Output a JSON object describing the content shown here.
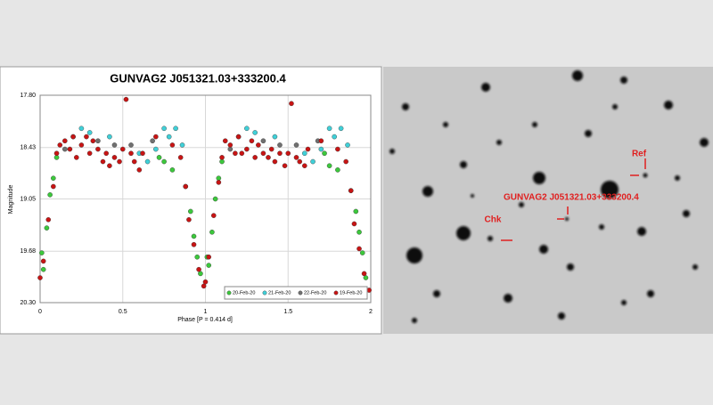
{
  "chart_data": {
    "type": "scatter",
    "title": "GUNVAG2 J051321.03+333200.4",
    "x_label": "Phase [P = 0.414 d]",
    "y_label": "Magnitude",
    "xlim": [
      0,
      2
    ],
    "xticks": [
      0,
      0.5,
      1,
      1.5,
      2
    ],
    "ylim": [
      17.8,
      20.3
    ],
    "y_inverted": true,
    "yticks": [
      {
        "value": 17.8,
        "label": "17.80"
      },
      18.43,
      19.05,
      19.68,
      {
        "value": 20.3,
        "label": "20.30"
      }
    ],
    "grid": true,
    "legend": "lower right",
    "series": [
      {
        "name": "20-Feb-20",
        "color": "#3cc83c",
        "x": [
          0.01,
          0.02,
          0.04,
          0.06,
          0.08,
          0.1,
          0.72,
          0.75,
          0.8,
          0.88,
          0.91,
          0.93,
          0.95,
          0.97,
          1.01,
          1.02,
          1.04,
          1.06,
          1.08,
          1.1,
          1.72,
          1.75,
          1.8,
          1.88,
          1.91,
          1.93,
          1.95,
          1.97
        ],
        "values": [
          19.7,
          19.9,
          19.4,
          19.0,
          18.8,
          18.55,
          18.55,
          18.6,
          18.7,
          18.9,
          19.2,
          19.5,
          19.75,
          19.95,
          19.75,
          19.85,
          19.45,
          19.05,
          18.8,
          18.6,
          18.5,
          18.65,
          18.7,
          18.95,
          19.2,
          19.45,
          19.7,
          20.0
        ]
      },
      {
        "name": "21-Feb-20",
        "color": "#40d0d8",
        "x": [
          0.2,
          0.25,
          0.3,
          0.42,
          0.6,
          0.65,
          0.7,
          0.75,
          0.78,
          0.82,
          0.86,
          1.2,
          1.25,
          1.3,
          1.42,
          1.6,
          1.65,
          1.7,
          1.75,
          1.78,
          1.82,
          1.86
        ],
        "values": [
          18.3,
          18.2,
          18.25,
          18.3,
          18.5,
          18.6,
          18.45,
          18.2,
          18.3,
          18.2,
          18.4,
          18.3,
          18.2,
          18.25,
          18.3,
          18.5,
          18.6,
          18.45,
          18.2,
          18.3,
          18.2,
          18.4
        ]
      },
      {
        "name": "22-Feb-20",
        "color": "#707070",
        "x": [
          0.15,
          0.35,
          0.45,
          0.55,
          0.68,
          1.15,
          1.35,
          1.45,
          1.55,
          1.68
        ],
        "values": [
          18.45,
          18.35,
          18.4,
          18.4,
          18.35,
          18.45,
          18.35,
          18.4,
          18.4,
          18.35
        ]
      },
      {
        "name": "19-Feb-20",
        "color": "#c81414",
        "x": [
          0.0,
          0.02,
          0.05,
          0.08,
          0.1,
          0.12,
          0.15,
          0.18,
          0.2,
          0.22,
          0.25,
          0.28,
          0.3,
          0.32,
          0.35,
          0.38,
          0.4,
          0.42,
          0.45,
          0.48,
          0.5,
          0.52,
          0.55,
          0.57,
          0.6,
          0.62,
          0.7,
          0.8,
          0.85,
          0.88,
          0.9,
          0.93,
          0.96,
          0.99,
          1.0,
          1.02,
          1.05,
          1.08,
          1.1,
          1.12,
          1.15,
          1.18,
          1.2,
          1.22,
          1.25,
          1.28,
          1.3,
          1.32,
          1.35,
          1.38,
          1.4,
          1.42,
          1.45,
          1.48,
          1.5,
          1.52,
          1.55,
          1.57,
          1.6,
          1.62,
          1.7,
          1.8,
          1.85,
          1.88,
          1.9,
          1.93,
          1.96,
          1.99
        ],
        "values": [
          20.0,
          19.8,
          19.3,
          18.9,
          18.5,
          18.4,
          18.35,
          18.45,
          18.3,
          18.55,
          18.4,
          18.3,
          18.5,
          18.35,
          18.45,
          18.6,
          18.5,
          18.65,
          18.55,
          18.6,
          18.45,
          17.85,
          18.5,
          18.6,
          18.7,
          18.5,
          18.3,
          18.4,
          18.55,
          18.9,
          19.3,
          19.6,
          19.9,
          20.1,
          20.05,
          19.75,
          19.25,
          18.85,
          18.55,
          18.35,
          18.4,
          18.5,
          18.3,
          18.5,
          18.45,
          18.35,
          18.55,
          18.4,
          18.5,
          18.55,
          18.45,
          18.6,
          18.5,
          18.65,
          18.5,
          17.9,
          18.55,
          18.6,
          18.65,
          18.45,
          18.35,
          18.45,
          18.6,
          18.95,
          19.35,
          19.65,
          19.95,
          20.15
        ]
      }
    ]
  },
  "finder_chart": {
    "labels": {
      "target": "GUNVAG2 J051321.03+333200.4",
      "ref": "Ref",
      "chk": "Chk"
    }
  }
}
